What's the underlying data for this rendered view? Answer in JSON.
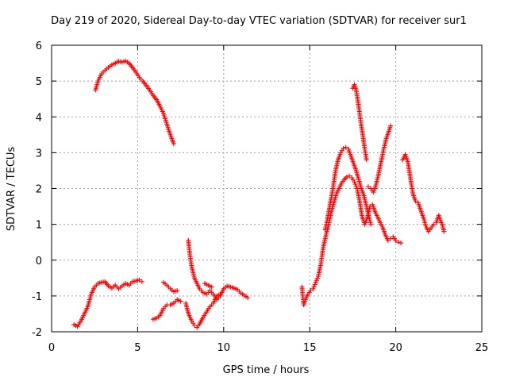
{
  "chart_data": {
    "type": "scatter",
    "title": "Day 219 of 2020, Sidereal Day-to-day VTEC variation (SDTVAR) for receiver sur1",
    "xlabel": "GPS time / hours",
    "ylabel": "SDTVAR / TECUs",
    "xlim": [
      0,
      25
    ],
    "ylim": [
      -2,
      6
    ],
    "xticks": [
      "0",
      "5",
      "10",
      "15",
      "20",
      "25"
    ],
    "yticks": [
      "-2",
      "-1",
      "0",
      "1",
      "2",
      "3",
      "4",
      "5",
      "6"
    ],
    "xtick_values": [
      0,
      5,
      10,
      15,
      20,
      25
    ],
    "ytick_values": [
      -2,
      -1,
      0,
      1,
      2,
      3,
      4,
      5,
      6
    ],
    "grid": true,
    "marker": "+",
    "color": "#ff0000",
    "segments": [
      {
        "name": "track-1",
        "points": [
          [
            2.55,
            4.75
          ],
          [
            2.7,
            5.0
          ],
          [
            2.9,
            5.2
          ],
          [
            3.1,
            5.3
          ],
          [
            3.3,
            5.38
          ],
          [
            3.5,
            5.45
          ],
          [
            3.7,
            5.5
          ],
          [
            3.9,
            5.55
          ],
          [
            4.1,
            5.53
          ],
          [
            4.3,
            5.56
          ],
          [
            4.5,
            5.5
          ],
          [
            4.7,
            5.38
          ],
          [
            4.9,
            5.25
          ],
          [
            5.1,
            5.1
          ],
          [
            5.3,
            5.0
          ],
          [
            5.5,
            4.88
          ],
          [
            5.7,
            4.75
          ],
          [
            5.9,
            4.6
          ],
          [
            6.1,
            4.48
          ],
          [
            6.3,
            4.3
          ],
          [
            6.5,
            4.1
          ],
          [
            6.7,
            3.8
          ],
          [
            6.9,
            3.5
          ],
          [
            7.1,
            3.25
          ]
        ]
      },
      {
        "name": "track-2",
        "points": [
          [
            1.3,
            -1.8
          ],
          [
            1.5,
            -1.85
          ],
          [
            1.7,
            -1.7
          ],
          [
            1.9,
            -1.5
          ],
          [
            2.1,
            -1.3
          ],
          [
            2.3,
            -0.95
          ],
          [
            2.5,
            -0.75
          ],
          [
            2.7,
            -0.65
          ],
          [
            2.9,
            -0.62
          ],
          [
            3.1,
            -0.6
          ],
          [
            3.3,
            -0.72
          ],
          [
            3.5,
            -0.78
          ],
          [
            3.7,
            -0.7
          ],
          [
            3.9,
            -0.8
          ],
          [
            4.1,
            -0.72
          ],
          [
            4.3,
            -0.65
          ],
          [
            4.5,
            -0.7
          ],
          [
            4.7,
            -0.6
          ],
          [
            4.9,
            -0.58
          ],
          [
            5.1,
            -0.55
          ],
          [
            5.25,
            -0.6
          ]
        ]
      },
      {
        "name": "track-3",
        "points": [
          [
            5.9,
            -1.65
          ],
          [
            6.1,
            -1.62
          ],
          [
            6.3,
            -1.55
          ],
          [
            6.5,
            -1.35
          ],
          [
            6.7,
            -1.25
          ],
          [
            6.9,
            -1.25
          ],
          [
            7.1,
            -1.2
          ],
          [
            7.3,
            -1.1
          ],
          [
            7.5,
            -1.15
          ]
        ]
      },
      {
        "name": "track-4",
        "points": [
          [
            6.5,
            -0.62
          ],
          [
            6.7,
            -0.7
          ],
          [
            6.9,
            -0.8
          ],
          [
            7.1,
            -0.88
          ],
          [
            7.3,
            -0.85
          ]
        ]
      },
      {
        "name": "track-5",
        "points": [
          [
            7.95,
            0.55
          ],
          [
            8.0,
            0.3
          ],
          [
            8.05,
            0.1
          ],
          [
            8.15,
            -0.2
          ],
          [
            8.3,
            -0.5
          ],
          [
            8.45,
            -0.65
          ],
          [
            8.6,
            -0.8
          ],
          [
            8.8,
            -0.9
          ],
          [
            9.0,
            -0.95
          ],
          [
            9.2,
            -0.85
          ],
          [
            9.4,
            -0.95
          ],
          [
            9.6,
            -1.1
          ],
          [
            9.8,
            -1.0
          ],
          [
            10.0,
            -0.8
          ],
          [
            10.2,
            -0.72
          ],
          [
            10.4,
            -0.75
          ],
          [
            10.6,
            -0.78
          ],
          [
            10.8,
            -0.82
          ],
          [
            11.0,
            -0.92
          ],
          [
            11.2,
            -0.98
          ],
          [
            11.4,
            -1.05
          ]
        ]
      },
      {
        "name": "track-6",
        "points": [
          [
            7.8,
            -1.2
          ],
          [
            7.9,
            -1.4
          ],
          [
            8.0,
            -1.55
          ],
          [
            8.15,
            -1.7
          ],
          [
            8.3,
            -1.82
          ],
          [
            8.45,
            -1.88
          ],
          [
            8.6,
            -1.78
          ],
          [
            8.8,
            -1.6
          ],
          [
            9.0,
            -1.45
          ],
          [
            9.2,
            -1.3
          ],
          [
            9.4,
            -1.2
          ],
          [
            9.6,
            -1.0
          ],
          [
            9.8,
            -0.95
          ]
        ]
      },
      {
        "name": "track-7",
        "points": [
          [
            8.9,
            -0.65
          ],
          [
            9.1,
            -0.7
          ],
          [
            9.3,
            -0.75
          ]
        ]
      },
      {
        "name": "track-8",
        "points": [
          [
            14.55,
            -0.75
          ],
          [
            14.6,
            -1.0
          ],
          [
            14.65,
            -1.25
          ],
          [
            14.75,
            -1.1
          ],
          [
            14.9,
            -0.95
          ],
          [
            15.05,
            -0.85
          ],
          [
            15.2,
            -0.8
          ],
          [
            15.35,
            -0.62
          ],
          [
            15.5,
            -0.45
          ],
          [
            15.65,
            -0.1
          ],
          [
            15.8,
            0.4
          ],
          [
            15.95,
            0.7
          ],
          [
            16.1,
            1.0
          ],
          [
            16.25,
            1.35
          ],
          [
            16.4,
            1.6
          ],
          [
            16.55,
            1.85
          ],
          [
            16.7,
            2.0
          ],
          [
            16.85,
            2.15
          ],
          [
            17.0,
            2.25
          ],
          [
            17.15,
            2.32
          ],
          [
            17.3,
            2.35
          ],
          [
            17.45,
            2.3
          ],
          [
            17.6,
            2.18
          ],
          [
            17.75,
            2.0
          ],
          [
            17.9,
            1.65
          ],
          [
            18.05,
            1.2
          ],
          [
            18.2,
            1.0
          ],
          [
            18.35,
            1.2
          ],
          [
            18.5,
            1.5
          ],
          [
            18.65,
            1.55
          ],
          [
            18.8,
            1.35
          ],
          [
            18.95,
            1.2
          ],
          [
            19.1,
            1.05
          ],
          [
            19.25,
            0.9
          ],
          [
            19.4,
            0.7
          ],
          [
            19.55,
            0.55
          ],
          [
            19.7,
            0.6
          ],
          [
            19.85,
            0.65
          ],
          [
            20.0,
            0.55
          ],
          [
            20.15,
            0.5
          ],
          [
            20.3,
            0.48
          ]
        ]
      },
      {
        "name": "track-9",
        "points": [
          [
            15.9,
            0.85
          ],
          [
            16.05,
            1.2
          ],
          [
            16.2,
            1.6
          ],
          [
            16.35,
            2.0
          ],
          [
            16.5,
            2.5
          ],
          [
            16.65,
            2.8
          ],
          [
            16.8,
            3.0
          ],
          [
            16.95,
            3.12
          ],
          [
            17.1,
            3.15
          ],
          [
            17.25,
            3.1
          ],
          [
            17.4,
            2.9
          ],
          [
            17.55,
            2.7
          ],
          [
            17.7,
            2.5
          ],
          [
            17.85,
            2.25
          ],
          [
            18.0,
            2.0
          ],
          [
            18.15,
            1.8
          ],
          [
            18.3,
            1.5
          ],
          [
            18.45,
            1.2
          ],
          [
            18.55,
            1.0
          ]
        ]
      },
      {
        "name": "track-10",
        "points": [
          [
            17.5,
            4.8
          ],
          [
            17.6,
            4.9
          ],
          [
            17.7,
            4.75
          ],
          [
            17.8,
            4.45
          ],
          [
            17.9,
            4.1
          ],
          [
            18.0,
            3.75
          ],
          [
            18.1,
            3.45
          ],
          [
            18.2,
            3.1
          ],
          [
            18.3,
            2.8
          ]
        ]
      },
      {
        "name": "track-11",
        "points": [
          [
            18.4,
            2.05
          ],
          [
            18.55,
            2.0
          ],
          [
            18.7,
            1.9
          ],
          [
            18.85,
            2.1
          ],
          [
            19.0,
            2.4
          ],
          [
            19.15,
            2.75
          ],
          [
            19.3,
            3.1
          ],
          [
            19.45,
            3.4
          ],
          [
            19.6,
            3.6
          ],
          [
            19.7,
            3.75
          ]
        ]
      },
      {
        "name": "track-12",
        "points": [
          [
            20.4,
            2.8
          ],
          [
            20.55,
            2.95
          ],
          [
            20.7,
            2.75
          ],
          [
            20.85,
            2.3
          ],
          [
            21.0,
            1.85
          ],
          [
            21.15,
            1.65
          ],
          [
            21.3,
            1.6
          ],
          [
            21.45,
            1.4
          ],
          [
            21.6,
            1.2
          ],
          [
            21.75,
            0.95
          ],
          [
            21.9,
            0.8
          ],
          [
            22.05,
            0.9
          ],
          [
            22.2,
            1.0
          ],
          [
            22.35,
            1.05
          ],
          [
            22.5,
            1.25
          ],
          [
            22.6,
            1.1
          ],
          [
            22.7,
            1.0
          ],
          [
            22.8,
            0.8
          ]
        ]
      }
    ]
  }
}
